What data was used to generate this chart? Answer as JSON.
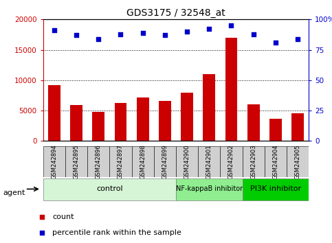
{
  "title": "GDS3175 / 32548_at",
  "samples": [
    "GSM242894",
    "GSM242895",
    "GSM242896",
    "GSM242897",
    "GSM242898",
    "GSM242899",
    "GSM242900",
    "GSM242901",
    "GSM242902",
    "GSM242903",
    "GSM242904",
    "GSM242905"
  ],
  "counts": [
    9200,
    5900,
    4800,
    6200,
    7100,
    6600,
    8000,
    11000,
    17000,
    6000,
    3700,
    4500
  ],
  "percentiles": [
    91,
    87,
    84,
    88,
    89,
    87,
    90,
    92,
    95,
    88,
    81,
    84
  ],
  "groups": [
    {
      "label": "control",
      "start": 0,
      "end": 5,
      "color": "#d6f5d6"
    },
    {
      "label": "NF-kappaB inhibitor",
      "start": 6,
      "end": 8,
      "color": "#90ee90"
    },
    {
      "label": "PI3K inhibitor",
      "start": 9,
      "end": 11,
      "color": "#00cc00"
    }
  ],
  "bar_color": "#cc0000",
  "dot_color": "#0000cc",
  "left_axis_color": "#cc0000",
  "right_axis_color": "#0000cc",
  "ylim_left": [
    0,
    20000
  ],
  "ylim_right": [
    0,
    100
  ],
  "yticks_left": [
    0,
    5000,
    10000,
    15000,
    20000
  ],
  "ytick_labels_left": [
    "0",
    "5000",
    "10000",
    "15000",
    "20000"
  ],
  "yticks_right": [
    0,
    25,
    50,
    75,
    100
  ],
  "ytick_labels_right": [
    "0",
    "25",
    "50",
    "75",
    "100%"
  ],
  "background_color": "#ffffff",
  "legend_items": [
    {
      "label": "count",
      "color": "#cc0000"
    },
    {
      "label": "percentile rank within the sample",
      "color": "#0000cc"
    }
  ],
  "agent_label": "agent",
  "figsize": [
    4.83,
    3.54
  ],
  "dpi": 100
}
